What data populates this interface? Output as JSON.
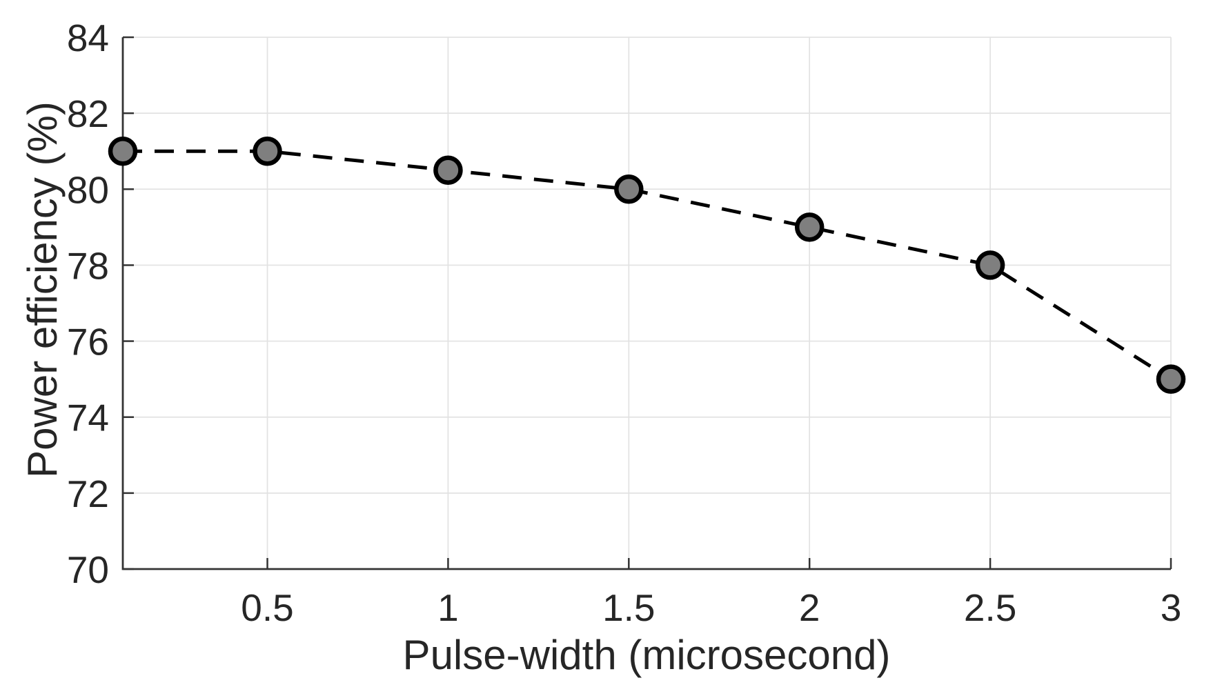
{
  "chart_data": {
    "type": "line",
    "title": "",
    "xlabel": "Pulse-width (microsecond)",
    "ylabel": "Power efficiency (%)",
    "x": [
      0.1,
      0.5,
      1,
      1.5,
      2,
      2.5,
      3
    ],
    "series": [
      {
        "name": "Power efficiency",
        "values": [
          81,
          81,
          80.5,
          80,
          79,
          78,
          75
        ],
        "line_style": "dashed",
        "line_color": "#000000",
        "marker": "circle",
        "marker_fill": "#7f7f7f",
        "marker_edge": "#000000"
      }
    ],
    "xlim": [
      0.1,
      3
    ],
    "ylim": [
      70,
      84
    ],
    "xticks": [
      0.5,
      1,
      1.5,
      2,
      2.5,
      3
    ],
    "xtick_labels": [
      "0.5",
      "1",
      "1.5",
      "2",
      "2.5",
      "3"
    ],
    "yticks": [
      70,
      72,
      74,
      76,
      78,
      80,
      82,
      84
    ],
    "ytick_labels": [
      "70",
      "72",
      "74",
      "76",
      "78",
      "80",
      "82",
      "84"
    ],
    "grid": true,
    "legend": "none",
    "colors": {
      "grid": "#e2e2e2",
      "axis": "#333333",
      "text": "#262626",
      "background": "#ffffff"
    }
  }
}
